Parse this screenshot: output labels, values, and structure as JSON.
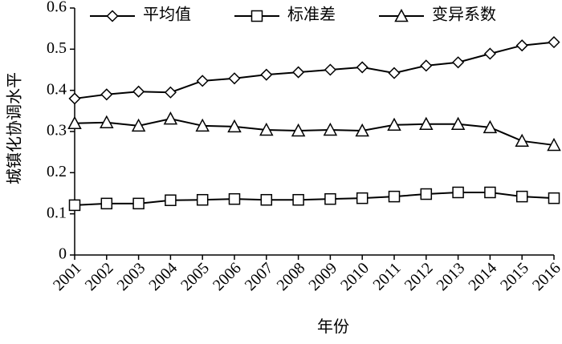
{
  "chart_data": {
    "type": "line",
    "x_label": "年份",
    "y_label": "城镇化协调水平",
    "categories": [
      "2001",
      "2002",
      "2003",
      "2004",
      "2005",
      "2006",
      "2007",
      "2008",
      "2009",
      "2010",
      "2011",
      "2012",
      "2013",
      "2014",
      "2015",
      "2016"
    ],
    "ylim": [
      0,
      0.6
    ],
    "yticks": [
      0,
      0.1,
      0.2,
      0.3,
      0.4,
      0.5,
      0.6
    ],
    "legend_position": "top",
    "series": [
      {
        "name": "平均值",
        "color": "#000000",
        "marker": "diamond",
        "values": [
          0.38,
          0.39,
          0.397,
          0.395,
          0.423,
          0.429,
          0.438,
          0.444,
          0.45,
          0.456,
          0.442,
          0.46,
          0.468,
          0.489,
          0.509,
          0.517
        ]
      },
      {
        "name": "标准差",
        "color": "#000000",
        "marker": "square",
        "values": [
          0.121,
          0.125,
          0.125,
          0.133,
          0.134,
          0.136,
          0.134,
          0.134,
          0.136,
          0.138,
          0.142,
          0.148,
          0.152,
          0.152,
          0.142,
          0.138
        ]
      },
      {
        "name": "变异系数",
        "color": "#000000",
        "marker": "triangle",
        "values": [
          0.32,
          0.322,
          0.314,
          0.331,
          0.314,
          0.312,
          0.304,
          0.302,
          0.304,
          0.302,
          0.316,
          0.318,
          0.318,
          0.31,
          0.277,
          0.267
        ]
      }
    ]
  }
}
